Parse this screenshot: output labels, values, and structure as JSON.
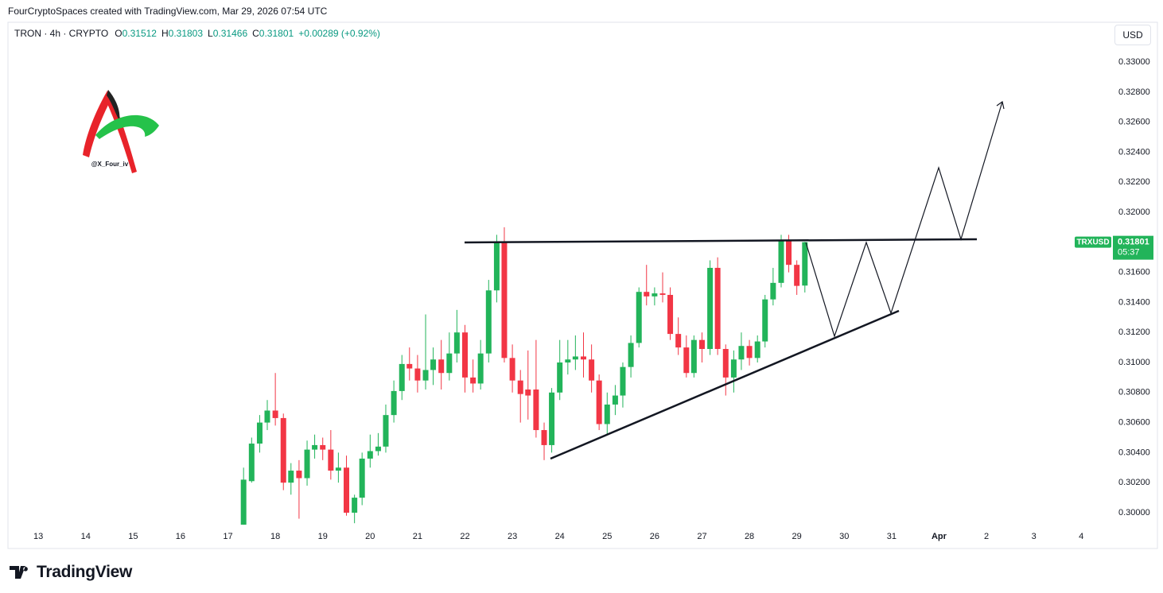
{
  "chart_data": {
    "type": "candlestick",
    "attribution": "FourCryptoSpaces created with TradingView.com, Mar 29, 2026 07:54 UTC",
    "legend": {
      "symbol": "TRON · 4h · CRYPTO",
      "labels": [
        "O",
        "H",
        "L",
        "C"
      ],
      "change": "+0.00289 (+0.92%)"
    },
    "currency": "USD",
    "watermark": "@X_Four_iv",
    "brand": "TradingView",
    "countdown": "05:37",
    "up_color": "#22b45a",
    "down_color": "#f23645",
    "x": [
      17.33,
      17.5,
      17.67,
      17.83,
      18,
      18.17,
      18.33,
      18.5,
      18.67,
      18.83,
      19,
      19.17,
      19.33,
      19.5,
      19.67,
      19.83,
      20,
      20.17,
      20.33,
      20.5,
      20.67,
      20.83,
      21,
      21.17,
      21.33,
      21.5,
      21.67,
      21.83,
      22,
      22.17,
      22.33,
      22.5,
      22.67,
      22.83,
      23,
      23.17,
      23.33,
      23.5,
      23.67,
      23.83,
      24,
      24.17,
      24.33,
      24.5,
      24.67,
      24.83,
      25,
      25.17,
      25.33,
      25.5,
      25.67,
      25.83,
      26,
      26.17,
      26.33,
      26.5,
      26.67,
      26.83,
      27,
      27.17,
      27.33,
      27.5,
      27.67,
      27.83,
      28,
      28.17,
      28.33,
      28.5,
      28.67,
      28.83,
      29,
      29.17
    ],
    "series": [
      {
        "name": "TRXUSD",
        "open": [
          0.2992,
          0.3021,
          0.3046,
          0.306,
          0.3068,
          0.3063,
          0.302,
          0.3028,
          0.3023,
          0.3042,
          0.3045,
          0.3042,
          0.3028,
          0.303,
          0.3,
          0.301,
          0.3036,
          0.3041,
          0.3044,
          0.3065,
          0.3081,
          0.3099,
          0.3096,
          0.3088,
          0.3095,
          0.3102,
          0.3093,
          0.3106,
          0.312,
          0.309,
          0.3086,
          0.3106,
          0.3148,
          0.318,
          0.3103,
          0.3088,
          0.3082,
          0.3082,
          0.3055,
          0.3045,
          0.308,
          0.31,
          0.3102,
          0.3104,
          0.3102,
          0.3088,
          0.3059,
          0.3072,
          0.3078,
          0.3097,
          0.3113,
          0.3147,
          0.3144,
          0.3146,
          0.3145,
          0.3119,
          0.311,
          0.3093,
          0.3115,
          0.3109,
          0.3163,
          0.3109,
          0.309,
          0.3102,
          0.3111,
          0.3103,
          0.3114,
          0.3142,
          0.3153,
          0.3181,
          0.3165,
          0.31512
        ],
        "high": [
          0.303,
          0.305,
          0.3065,
          0.3075,
          0.3093,
          0.3066,
          0.3033,
          0.3035,
          0.3048,
          0.3052,
          0.305,
          0.3055,
          0.304,
          0.3038,
          0.3012,
          0.304,
          0.3052,
          0.3053,
          0.3072,
          0.3088,
          0.3105,
          0.311,
          0.3105,
          0.3132,
          0.311,
          0.3115,
          0.312,
          0.3135,
          0.3125,
          0.3102,
          0.3115,
          0.3155,
          0.3185,
          0.319,
          0.3112,
          0.3095,
          0.3108,
          0.3115,
          0.306,
          0.3083,
          0.3115,
          0.3115,
          0.3118,
          0.312,
          0.3112,
          0.3092,
          0.308,
          0.3085,
          0.31,
          0.3118,
          0.315,
          0.3165,
          0.315,
          0.316,
          0.315,
          0.313,
          0.3118,
          0.3118,
          0.312,
          0.3168,
          0.317,
          0.3112,
          0.3108,
          0.312,
          0.3115,
          0.3118,
          0.3145,
          0.3163,
          0.3185,
          0.3185,
          0.3168,
          0.31803
        ],
        "low": [
          0.2992,
          0.302,
          0.304,
          0.3055,
          0.3058,
          0.3015,
          0.3012,
          0.2996,
          0.3018,
          0.3036,
          0.3035,
          0.3022,
          0.302,
          0.2998,
          0.2993,
          0.3005,
          0.303,
          0.3038,
          0.304,
          0.306,
          0.3075,
          0.3088,
          0.308,
          0.3082,
          0.3085,
          0.3082,
          0.3088,
          0.31,
          0.308,
          0.308,
          0.3082,
          0.31,
          0.314,
          0.31,
          0.308,
          0.306,
          0.3062,
          0.305,
          0.3035,
          0.304,
          0.3075,
          0.3092,
          0.3095,
          0.309,
          0.308,
          0.3055,
          0.3052,
          0.3065,
          0.307,
          0.309,
          0.311,
          0.3138,
          0.3138,
          0.314,
          0.3115,
          0.3105,
          0.309,
          0.309,
          0.31,
          0.3105,
          0.3105,
          0.3078,
          0.308,
          0.3095,
          0.3098,
          0.31,
          0.311,
          0.3138,
          0.315,
          0.316,
          0.3145,
          0.31466
        ],
        "close": [
          0.3022,
          0.3046,
          0.306,
          0.3068,
          0.3063,
          0.302,
          0.3028,
          0.3023,
          0.3042,
          0.3045,
          0.3042,
          0.3028,
          0.303,
          0.3,
          0.301,
          0.3036,
          0.3041,
          0.3044,
          0.3065,
          0.3081,
          0.3099,
          0.3096,
          0.3088,
          0.3095,
          0.3102,
          0.3093,
          0.3106,
          0.312,
          0.309,
          0.3086,
          0.3106,
          0.3148,
          0.318,
          0.3103,
          0.3088,
          0.3079,
          0.3078,
          0.3055,
          0.3045,
          0.308,
          0.31,
          0.3102,
          0.3104,
          0.3102,
          0.3088,
          0.3059,
          0.3072,
          0.3078,
          0.3097,
          0.3113,
          0.3147,
          0.3144,
          0.3146,
          0.3145,
          0.3119,
          0.311,
          0.3093,
          0.3115,
          0.3109,
          0.3163,
          0.3109,
          0.309,
          0.3102,
          0.3111,
          0.3103,
          0.3114,
          0.3142,
          0.3153,
          0.3181,
          0.3165,
          0.3151,
          0.31801
        ]
      }
    ],
    "xlim": [
      12.36,
      35.6
    ],
    "xticks": [
      13,
      14,
      15,
      16,
      17,
      18,
      19,
      20,
      21,
      22,
      23,
      24,
      25,
      26,
      27,
      28,
      29,
      30,
      31,
      {
        "value": 32,
        "label": "Apr"
      },
      {
        "value": 33,
        "label": "2"
      },
      {
        "value": 34,
        "label": "3"
      },
      {
        "value": 35,
        "label": "4"
      }
    ],
    "ylim": [
      0.29894,
      0.33265
    ],
    "yticks": [
      {
        "value": 0.3,
        "label": "0.30000"
      },
      {
        "value": 0.302,
        "label": "0.30200"
      },
      {
        "value": 0.304,
        "label": "0.30400"
      },
      {
        "value": 0.306,
        "label": "0.30600"
      },
      {
        "value": 0.308,
        "label": "0.30800"
      },
      {
        "value": 0.31,
        "label": "0.31000"
      },
      {
        "value": 0.312,
        "label": "0.31200"
      },
      {
        "value": 0.314,
        "label": "0.31400"
      },
      {
        "value": 0.316,
        "label": "0.31600"
      },
      {
        "value": 0.318,
        "label": "0.31800"
      },
      {
        "value": 0.32,
        "label": "0.32000"
      },
      {
        "value": 0.322,
        "label": "0.32200"
      },
      {
        "value": 0.324,
        "label": "0.32400"
      },
      {
        "value": 0.326,
        "label": "0.32600"
      },
      {
        "value": 0.328,
        "label": "0.32800"
      },
      {
        "value": 0.33,
        "label": "0.33000"
      }
    ]
  }
}
